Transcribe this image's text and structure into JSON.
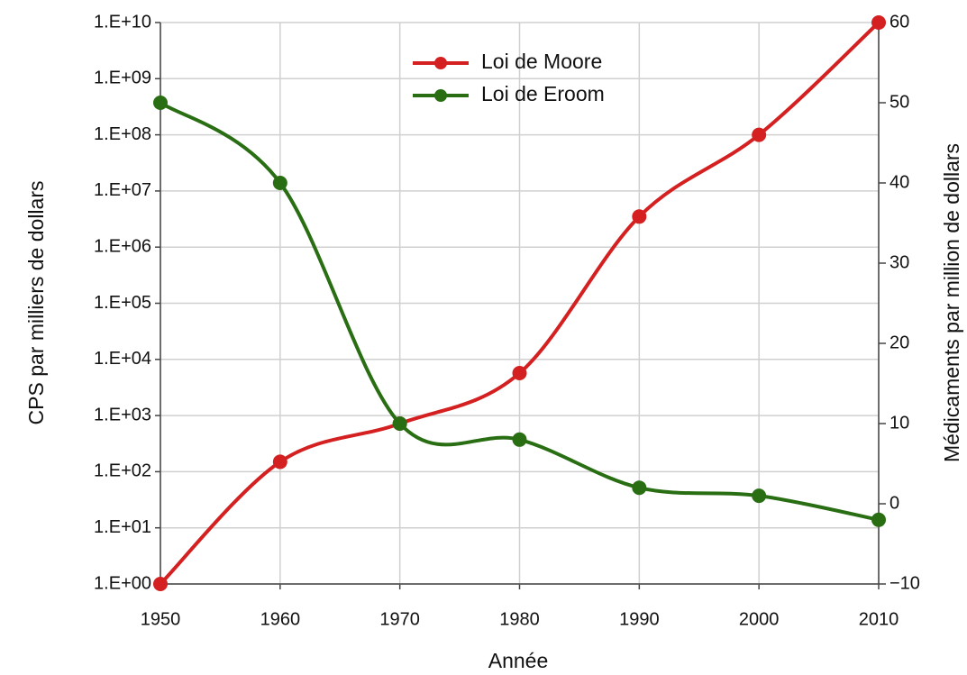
{
  "chart_data": {
    "type": "line",
    "x": [
      1950,
      1960,
      1970,
      1980,
      1990,
      2000,
      2010
    ],
    "xlabel": "Année",
    "ylabel": "CPS par milliers de dollars",
    "y2label": "Médicaments par million de dollars",
    "xlim": [
      1950,
      2010
    ],
    "xticks": [
      1950,
      1960,
      1970,
      1980,
      1990,
      2000,
      2010
    ],
    "ylim": [
      1,
      10000000000
    ],
    "ylog": true,
    "yticks": [
      {
        "value": 1,
        "label": "1.E+00"
      },
      {
        "value": 10,
        "label": "1.E+01"
      },
      {
        "value": 100,
        "label": "1.E+02"
      },
      {
        "value": 1000,
        "label": "1.E+03"
      },
      {
        "value": 10000,
        "label": "1.E+04"
      },
      {
        "value": 100000,
        "label": "1.E+05"
      },
      {
        "value": 1000000,
        "label": "1.E+06"
      },
      {
        "value": 10000000,
        "label": "1.E+07"
      },
      {
        "value": 100000000,
        "label": "1.E+08"
      },
      {
        "value": 1000000000,
        "label": "1.E+09"
      },
      {
        "value": 10000000000,
        "label": "1.E+10"
      }
    ],
    "y2lim": [
      -10,
      60
    ],
    "y2ticks": [
      {
        "value": -10,
        "label": "−10"
      },
      0,
      10,
      20,
      30,
      40,
      50,
      60
    ],
    "grid": true,
    "legend": "top",
    "series": [
      {
        "name": "Loi de Moore",
        "color": "#d42020",
        "values": [
          1,
          150,
          720,
          5700,
          3500000,
          100000000,
          10000000000
        ]
      },
      {
        "name": "Loi de Eroom",
        "color": "#2a6e14",
        "axis": "y2",
        "values": [
          50,
          40,
          10,
          8,
          2,
          1,
          -2
        ]
      }
    ]
  }
}
